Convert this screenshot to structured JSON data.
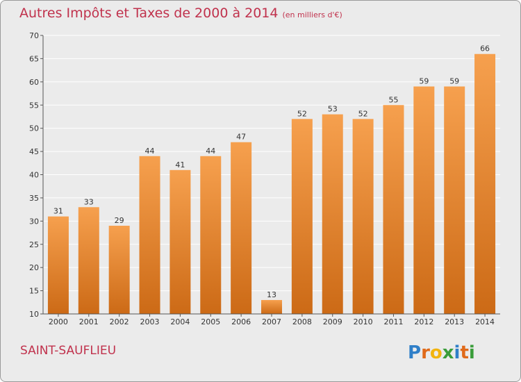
{
  "title": "Autres Impôts et Taxes de 2000 à 2014",
  "title_unit": "(en milliers d'€)",
  "commune": "SAINT-SAUFLIEU",
  "logo_text": "Proxiti",
  "colors": {
    "bar_light": "#f6a04e",
    "bar_dark": "#cc6a16",
    "title": "#c0314c",
    "background": "#ebebeb",
    "grid": "#ffffff"
  },
  "chart_data": {
    "type": "bar",
    "categories": [
      "2000",
      "2001",
      "2002",
      "2003",
      "2004",
      "2005",
      "2006",
      "2007",
      "2008",
      "2009",
      "2010",
      "2011",
      "2012",
      "2013",
      "2014"
    ],
    "values": [
      31,
      33,
      29,
      44,
      41,
      44,
      47,
      13,
      52,
      53,
      52,
      55,
      59,
      59,
      66
    ],
    "data_labels": [
      "31",
      "33",
      "29",
      "44",
      "41",
      "44",
      "47",
      "13",
      "52",
      "53",
      "52",
      "55",
      "59",
      "59",
      "66"
    ],
    "y_ticks": [
      "10",
      "15",
      "20",
      "25",
      "30",
      "35",
      "40",
      "45",
      "50",
      "55",
      "60",
      "65",
      "70"
    ],
    "ylim": [
      10,
      70
    ],
    "grid": true
  }
}
